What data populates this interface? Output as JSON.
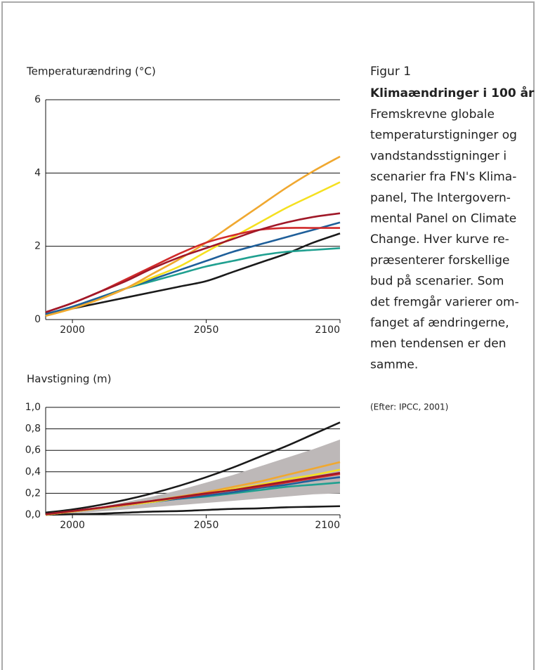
{
  "chart_data": [
    {
      "type": "line",
      "y_label": "Temperaturændring (°C)",
      "x": [
        1990,
        2000,
        2010,
        2020,
        2030,
        2040,
        2050,
        2060,
        2070,
        2080,
        2090,
        2100
      ],
      "xlim": [
        1990,
        2100
      ],
      "xticks": [
        2000,
        2050,
        2100
      ],
      "ylim": [
        0,
        6
      ],
      "yticks": [
        0,
        2,
        4,
        6
      ],
      "grid": true,
      "series": [
        {
          "color": "#1a1a1a",
          "values": [
            0.15,
            0.3,
            0.45,
            0.6,
            0.75,
            0.9,
            1.05,
            1.3,
            1.55,
            1.8,
            2.1,
            2.35
          ]
        },
        {
          "color": "#20a090",
          "values": [
            0.15,
            0.35,
            0.6,
            0.85,
            1.05,
            1.25,
            1.45,
            1.6,
            1.75,
            1.85,
            1.9,
            1.95
          ]
        },
        {
          "color": "#1f5f9a",
          "values": [
            0.15,
            0.35,
            0.6,
            0.85,
            1.1,
            1.35,
            1.6,
            1.85,
            2.05,
            2.25,
            2.45,
            2.65
          ]
        },
        {
          "color": "#f5e020",
          "values": [
            0.1,
            0.3,
            0.55,
            0.85,
            1.15,
            1.45,
            1.85,
            2.25,
            2.65,
            3.05,
            3.4,
            3.75
          ]
        },
        {
          "color": "#f0a830",
          "values": [
            0.1,
            0.3,
            0.55,
            0.85,
            1.25,
            1.65,
            2.1,
            2.6,
            3.1,
            3.6,
            4.05,
            4.45
          ]
        },
        {
          "color": "#d02a2a",
          "values": [
            0.2,
            0.45,
            0.75,
            1.1,
            1.45,
            1.8,
            2.1,
            2.3,
            2.45,
            2.5,
            2.5,
            2.5
          ]
        },
        {
          "color": "#a01828",
          "values": [
            0.2,
            0.45,
            0.75,
            1.05,
            1.4,
            1.7,
            1.95,
            2.2,
            2.45,
            2.65,
            2.8,
            2.9
          ]
        }
      ]
    },
    {
      "type": "line",
      "y_label": "Havstigning (m)",
      "x": [
        1990,
        2000,
        2010,
        2020,
        2030,
        2040,
        2050,
        2060,
        2070,
        2080,
        2090,
        2100
      ],
      "xlim": [
        1990,
        2100
      ],
      "xticks": [
        2000,
        2050,
        2100
      ],
      "ylim": [
        0,
        1
      ],
      "yticks": [
        {
          "value": 0,
          "label": "0,0"
        },
        {
          "value": 0.2,
          "label": "0,2"
        },
        {
          "value": 0.4,
          "label": "0,4"
        },
        {
          "value": 0.6,
          "label": "0,6"
        },
        {
          "value": 0.8,
          "label": "0,8"
        },
        {
          "value": 1,
          "label": "1,0"
        }
      ],
      "grid": true,
      "band": {
        "color": "#bdb8b8",
        "upper": [
          0,
          0.03,
          0.07,
          0.12,
          0.17,
          0.23,
          0.3,
          0.37,
          0.45,
          0.53,
          0.61,
          0.7
        ],
        "lower": [
          0,
          0.01,
          0.03,
          0.05,
          0.07,
          0.09,
          0.11,
          0.13,
          0.15,
          0.17,
          0.19,
          0.2
        ]
      },
      "series": [
        {
          "color": "#1a1a1a",
          "values": [
            0.02,
            0.05,
            0.09,
            0.14,
            0.2,
            0.27,
            0.35,
            0.44,
            0.54,
            0.64,
            0.75,
            0.86
          ]
        },
        {
          "color": "#1a1a1a",
          "values": [
            0,
            0.005,
            0.01,
            0.02,
            0.03,
            0.035,
            0.045,
            0.055,
            0.06,
            0.07,
            0.075,
            0.08
          ]
        },
        {
          "color": "#20a090",
          "values": [
            0,
            0.03,
            0.06,
            0.09,
            0.12,
            0.15,
            0.17,
            0.2,
            0.23,
            0.26,
            0.28,
            0.3
          ]
        },
        {
          "color": "#1f5f9a",
          "values": [
            0,
            0.03,
            0.06,
            0.09,
            0.12,
            0.15,
            0.18,
            0.21,
            0.25,
            0.28,
            0.32,
            0.35
          ]
        },
        {
          "color": "#f5e020",
          "values": [
            0,
            0.03,
            0.06,
            0.09,
            0.12,
            0.16,
            0.2,
            0.24,
            0.28,
            0.33,
            0.37,
            0.42
          ]
        },
        {
          "color": "#f0a830",
          "values": [
            0,
            0.03,
            0.06,
            0.1,
            0.13,
            0.17,
            0.21,
            0.26,
            0.31,
            0.37,
            0.43,
            0.49
          ]
        },
        {
          "color": "#d02a2a",
          "values": [
            0.005,
            0.035,
            0.065,
            0.095,
            0.13,
            0.16,
            0.195,
            0.23,
            0.26,
            0.3,
            0.34,
            0.38
          ]
        },
        {
          "color": "#a01828",
          "values": [
            0.005,
            0.035,
            0.065,
            0.1,
            0.13,
            0.165,
            0.2,
            0.23,
            0.27,
            0.31,
            0.35,
            0.39
          ]
        }
      ]
    }
  ],
  "caption": {
    "label": "Figur 1",
    "title": "Klimaændringer i 100 år",
    "lines": [
      "Fremskrevne globale",
      "temperaturstigninger og",
      "vandstandsstigninger i",
      "scenarier fra FN's Klima-",
      "panel, The Intergovern-",
      "mental Panel on Climate",
      "Change. Hver kurve re-",
      "præsenterer forskellige",
      "bud på scenarier. Som",
      "det fremgår varierer om-",
      "fanget af ændringerne,",
      "men tendensen er den",
      "samme."
    ],
    "source": "(Efter: IPCC, 2001)"
  }
}
